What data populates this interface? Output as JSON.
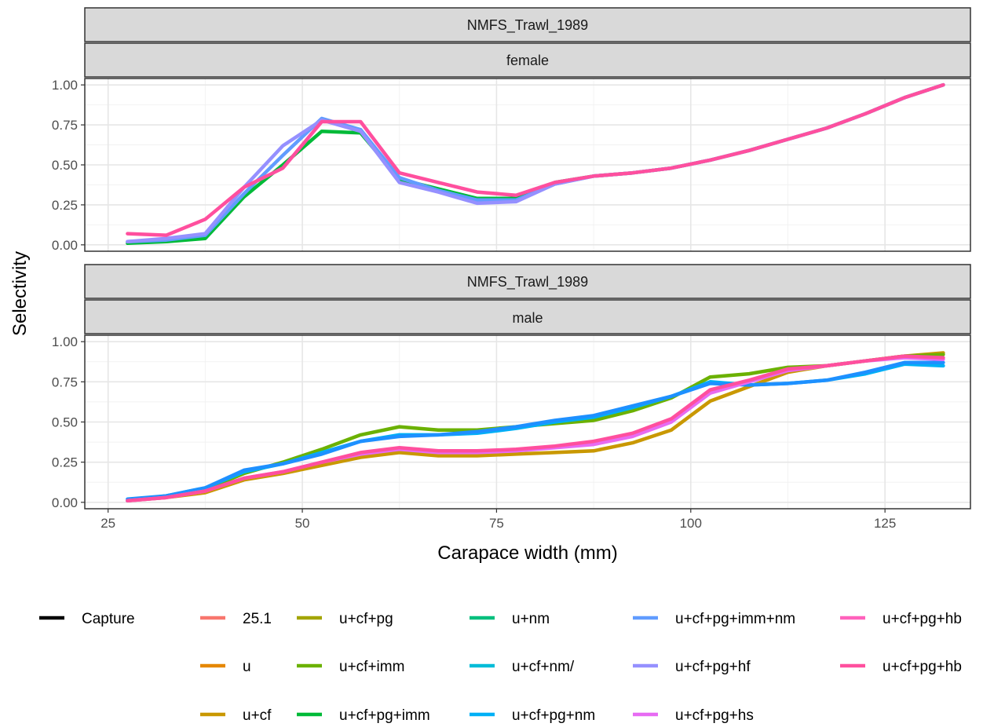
{
  "chart_data": {
    "type": "line",
    "xlabel": "Carapace width (mm)",
    "ylabel": "Selectivity",
    "xlim": [
      22,
      136
    ],
    "ylim": [
      -0.04,
      1.04
    ],
    "x_ticks": [
      25,
      50,
      75,
      100,
      125
    ],
    "y_ticks": [
      0.0,
      0.25,
      0.5,
      0.75,
      1.0
    ],
    "x_tick_labels": [
      "25",
      "50",
      "75",
      "100",
      "125"
    ],
    "y_tick_labels": [
      "0.00",
      "0.25",
      "0.50",
      "0.75",
      "1.00"
    ],
    "grid": true,
    "legend_position": "bottom",
    "x": [
      27.5,
      32.5,
      37.5,
      42.5,
      47.5,
      52.5,
      57.5,
      62.5,
      67.5,
      72.5,
      77.5,
      82.5,
      87.5,
      92.5,
      97.5,
      102.5,
      107.5,
      112.5,
      117.5,
      122.5,
      127.5,
      132.5
    ],
    "legend": [
      {
        "name": "Capture",
        "color": "#000000"
      },
      {
        "name": "25.1",
        "color": "#F8766D"
      },
      {
        "name": "u",
        "color": "#E58700"
      },
      {
        "name": "u+cf",
        "color": "#C99800"
      },
      {
        "name": "u+cf+pg",
        "color": "#A3A500"
      },
      {
        "name": "u+cf+imm",
        "color": "#6BB100"
      },
      {
        "name": "u+cf+pg+imm",
        "color": "#00BA38"
      },
      {
        "name": "u+nm",
        "color": "#00BF7D"
      },
      {
        "name": "u+cf+nm/",
        "color": "#00BCD8"
      },
      {
        "name": "u+cf+pg+nm",
        "color": "#00B0F6"
      },
      {
        "name": "u+cf+pg+imm+nm",
        "color": "#619CFF"
      },
      {
        "name": "u+cf+pg+hf",
        "color": "#9590FF"
      },
      {
        "name": "u+cf+pg+hs",
        "color": "#E76BF3"
      },
      {
        "name": "u+cf+pg+hb",
        "color": "#FF62BC"
      },
      {
        "name": "u+cf+pg+hb",
        "color": "#FF4F9E"
      }
    ],
    "panels": [
      {
        "strip_top": "NMFS_Trawl_1989",
        "strip_bottom": "female",
        "series": [
          {
            "color": "#00BA38",
            "values": [
              0.01,
              0.02,
              0.04,
              0.3,
              0.5,
              0.71,
              0.7,
              0.41,
              0.35,
              0.29,
              0.29,
              0.39,
              0.43,
              0.45,
              0.48,
              0.53,
              0.59,
              0.66,
              0.73,
              0.82,
              0.92,
              1.0
            ]
          },
          {
            "color": "#619CFF",
            "values": [
              0.02,
              0.03,
              0.06,
              0.32,
              0.56,
              0.79,
              0.72,
              0.42,
              0.34,
              0.28,
              0.28,
              0.38,
              0.43,
              0.45,
              0.48,
              0.53,
              0.59,
              0.66,
              0.73,
              0.82,
              0.92,
              1.0
            ]
          },
          {
            "color": "#9590FF",
            "values": [
              0.02,
              0.04,
              0.07,
              0.36,
              0.62,
              0.78,
              0.71,
              0.39,
              0.33,
              0.26,
              0.27,
              0.38,
              0.43,
              0.45,
              0.48,
              0.53,
              0.59,
              0.66,
              0.73,
              0.82,
              0.92,
              1.0
            ]
          },
          {
            "color": "#FF4F9E",
            "values": [
              0.07,
              0.06,
              0.16,
              0.36,
              0.48,
              0.77,
              0.77,
              0.45,
              0.39,
              0.33,
              0.31,
              0.39,
              0.43,
              0.45,
              0.48,
              0.53,
              0.59,
              0.66,
              0.73,
              0.82,
              0.92,
              1.0
            ]
          }
        ]
      },
      {
        "strip_top": "NMFS_Trawl_1989",
        "strip_bottom": "male",
        "series": [
          {
            "color": "#C99800",
            "values": [
              0.01,
              0.03,
              0.06,
              0.14,
              0.18,
              0.23,
              0.28,
              0.31,
              0.29,
              0.29,
              0.3,
              0.31,
              0.32,
              0.37,
              0.45,
              0.63,
              0.72,
              0.81,
              0.85,
              0.88,
              0.91,
              0.93
            ]
          },
          {
            "color": "#6BB100",
            "values": [
              0.01,
              0.04,
              0.08,
              0.18,
              0.25,
              0.33,
              0.42,
              0.47,
              0.45,
              0.45,
              0.47,
              0.49,
              0.51,
              0.57,
              0.65,
              0.78,
              0.8,
              0.84,
              0.85,
              0.88,
              0.91,
              0.92
            ]
          },
          {
            "color": "#00B0F6",
            "values": [
              0.01,
              0.04,
              0.09,
              0.19,
              0.24,
              0.31,
              0.38,
              0.42,
              0.42,
              0.43,
              0.46,
              0.5,
              0.53,
              0.59,
              0.66,
              0.75,
              0.73,
              0.74,
              0.76,
              0.8,
              0.86,
              0.85
            ]
          },
          {
            "color": "#1E90FF",
            "values": [
              0.02,
              0.04,
              0.09,
              0.2,
              0.24,
              0.3,
              0.38,
              0.41,
              0.42,
              0.44,
              0.47,
              0.51,
              0.54,
              0.6,
              0.66,
              0.74,
              0.73,
              0.74,
              0.76,
              0.81,
              0.87,
              0.87
            ]
          },
          {
            "color": "#E76BF3",
            "values": [
              0.01,
              0.03,
              0.07,
              0.15,
              0.19,
              0.25,
              0.3,
              0.33,
              0.31,
              0.31,
              0.32,
              0.34,
              0.36,
              0.41,
              0.5,
              0.68,
              0.75,
              0.82,
              0.85,
              0.88,
              0.9,
              0.89
            ]
          },
          {
            "color": "#FF4F9E",
            "values": [
              0.01,
              0.03,
              0.07,
              0.15,
              0.19,
              0.25,
              0.31,
              0.34,
              0.32,
              0.32,
              0.33,
              0.35,
              0.38,
              0.43,
              0.52,
              0.7,
              0.76,
              0.83,
              0.85,
              0.88,
              0.91,
              0.9
            ]
          }
        ]
      }
    ]
  }
}
